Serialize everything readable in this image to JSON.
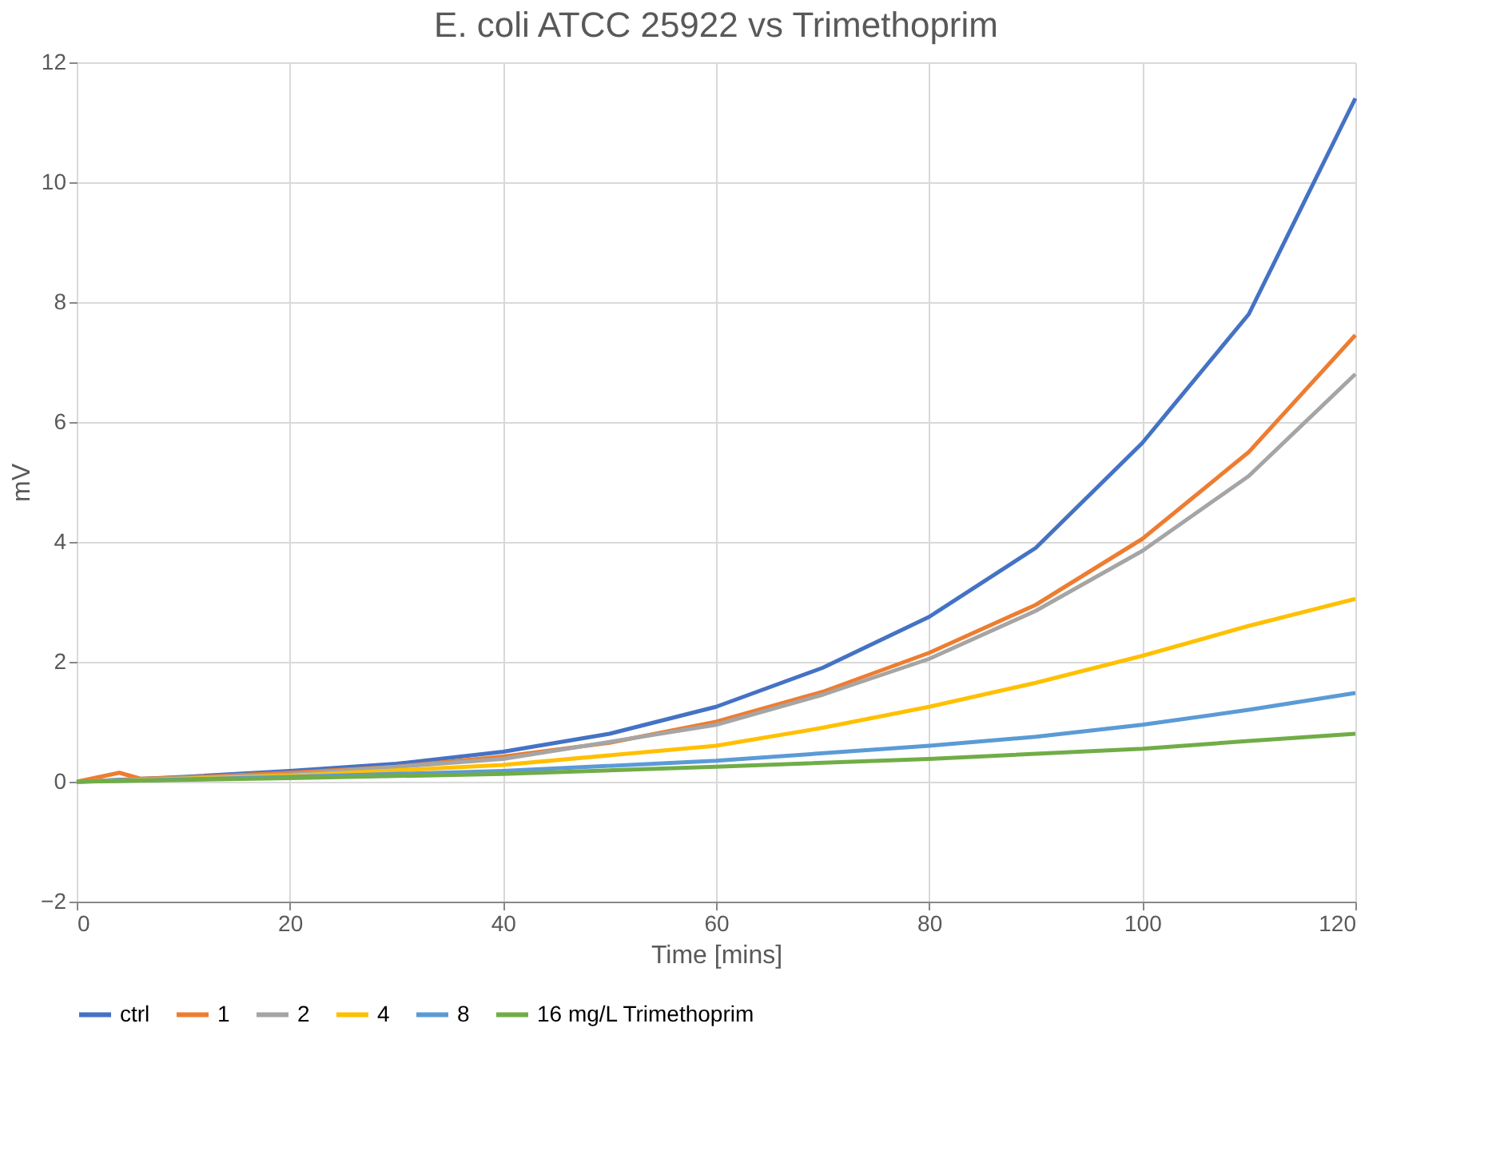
{
  "chart_data": {
    "type": "line",
    "title": "E. coli ATCC 25922 vs Trimethoprim",
    "xlabel": "Time [mins]",
    "ylabel": "mV",
    "xlim": [
      0,
      120
    ],
    "xticks": [
      0,
      20,
      40,
      60,
      80,
      100,
      120
    ],
    "ylim": [
      -2,
      12
    ],
    "yticks": [
      -2,
      0,
      2,
      4,
      6,
      8,
      10,
      12
    ],
    "grid": true,
    "legend": "bottom",
    "marker": "none",
    "line_style": "solid",
    "series": [
      {
        "name": "ctrl",
        "color": "#4472c4",
        "x": [
          0,
          10,
          20,
          30,
          40,
          50,
          60,
          70,
          80,
          90,
          100,
          110,
          120
        ],
        "values": [
          0,
          0.08,
          0.18,
          0.3,
          0.5,
          0.8,
          1.25,
          1.9,
          2.75,
          3.9,
          5.65,
          7.8,
          11.4
        ]
      },
      {
        "name": "1",
        "color": "#ed7d31",
        "x": [
          0,
          4,
          6,
          10,
          20,
          30,
          40,
          50,
          60,
          70,
          80,
          90,
          100,
          110,
          120
        ],
        "values": [
          0,
          0.15,
          0.05,
          0.07,
          0.15,
          0.25,
          0.42,
          0.65,
          1.0,
          1.5,
          2.15,
          2.95,
          4.05,
          5.5,
          7.45
        ]
      },
      {
        "name": "2",
        "color": "#a5a5a5",
        "x": [
          0,
          20,
          40,
          60,
          70,
          80,
          90,
          100,
          110,
          120
        ],
        "values": [
          0,
          0.12,
          0.38,
          0.95,
          1.45,
          2.05,
          2.85,
          3.85,
          5.1,
          6.8
        ]
      },
      {
        "name": "4",
        "color": "#ffc000",
        "x": [
          0,
          20,
          40,
          60,
          70,
          80,
          90,
          100,
          110,
          120
        ],
        "values": [
          0,
          0.1,
          0.28,
          0.6,
          0.9,
          1.25,
          1.65,
          2.1,
          2.6,
          3.05
        ]
      },
      {
        "name": "8",
        "color": "#5b9bd5",
        "x": [
          0,
          20,
          40,
          60,
          80,
          90,
          100,
          110,
          120
        ],
        "values": [
          0,
          0.08,
          0.18,
          0.35,
          0.6,
          0.75,
          0.95,
          1.2,
          1.48
        ]
      },
      {
        "name": "16 mg/L Trimethoprim",
        "color": "#70ad47",
        "x": [
          0,
          20,
          40,
          60,
          80,
          100,
          110,
          120
        ],
        "values": [
          0,
          0.06,
          0.13,
          0.25,
          0.38,
          0.55,
          0.68,
          0.8
        ]
      }
    ]
  }
}
